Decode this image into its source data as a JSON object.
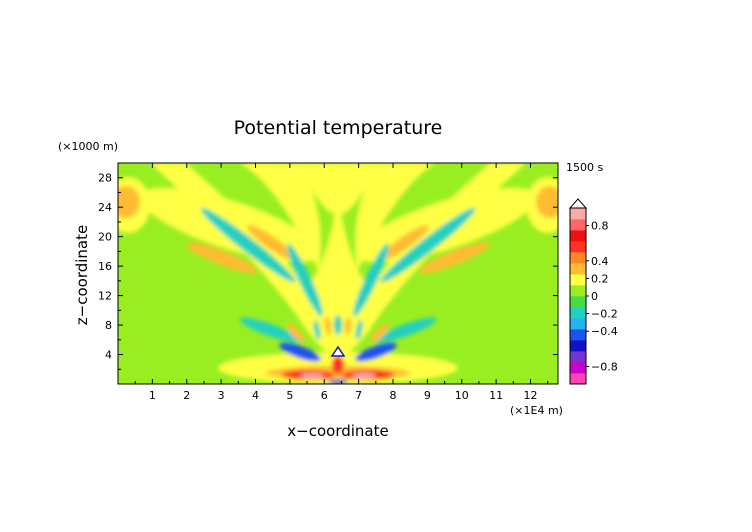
{
  "chart_data": {
    "type": "heatmap",
    "title": "Potential temperature",
    "xlabel": "x−coordinate",
    "ylabel": "z−coordinate",
    "x_unit": "(×1E4 m)",
    "y_unit": "(×1000 m)",
    "time_label": "1500 s",
    "xlim": [
      0,
      12.8
    ],
    "ylim": [
      0,
      30
    ],
    "x_ticks": [
      "1",
      "2",
      "3",
      "4",
      "5",
      "6",
      "7",
      "8",
      "9",
      "10",
      "11",
      "12"
    ],
    "y_ticks": [
      "4",
      "8",
      "12",
      "16",
      "20",
      "24",
      "28"
    ],
    "colorbar": {
      "labels": [
        "0.8",
        "0.4",
        "0.2",
        "0",
        "−0.2",
        "−0.4",
        "−0.8"
      ],
      "range": [
        -1.0,
        1.0
      ],
      "colors": [
        "#ff44b4",
        "#cc00cc",
        "#7733cc",
        "#1111cc",
        "#1a55ee",
        "#22b4f0",
        "#22d0c0",
        "#44dd44",
        "#99ee22",
        "#ffff44",
        "#ffbb33",
        "#ff8822",
        "#ff3322",
        "#ee1111",
        "#ff6666",
        "#ffaaaa"
      ]
    },
    "field_description_values": {
      "background": 0,
      "max": 0.9,
      "min": -0.9
    }
  }
}
